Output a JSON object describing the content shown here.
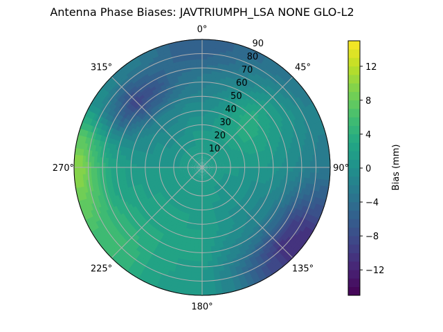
{
  "chart_data": {
    "type": "heatmap",
    "projection": "polar",
    "title": "Antenna Phase Biases: JAVTRIUMPH_LSA  NONE GLO-L2",
    "theta_direction": "clockwise",
    "theta_zero": "north",
    "theta_tick_labels": [
      "0°",
      "45°",
      "90°",
      "135°",
      "180°",
      "225°",
      "270°",
      "315°"
    ],
    "r_range": [
      0,
      90
    ],
    "r_tick_labels": [
      "10",
      "20",
      "30",
      "40",
      "50",
      "60",
      "70",
      "80",
      "90"
    ],
    "r_ticks": [
      10,
      20,
      30,
      40,
      50,
      60,
      70,
      80,
      90
    ],
    "grid": true,
    "colormap": "viridis",
    "colorbar": {
      "label": "Bias (mm)",
      "range": [
        -15,
        15
      ],
      "ticks": [
        12,
        8,
        4,
        0,
        -4,
        -8,
        -12
      ],
      "tick_labels": [
        "12",
        "8",
        "4",
        "0",
        "−4",
        "−8",
        "−12"
      ],
      "levels": 30
    },
    "azimuth_deg": [
      0,
      15,
      30,
      45,
      60,
      75,
      90,
      105,
      120,
      135,
      150,
      165,
      180,
      195,
      210,
      225,
      240,
      255,
      270,
      285,
      300,
      315,
      330,
      345
    ],
    "zenith_deg": [
      5,
      15,
      25,
      35,
      45,
      55,
      65,
      75,
      85
    ],
    "values_mm": [
      [
        1,
        1,
        1,
        0,
        -1,
        -2,
        -3,
        -5,
        -6
      ],
      [
        1,
        1,
        1,
        1,
        0,
        -1,
        -2,
        -4,
        -5
      ],
      [
        1,
        1,
        2,
        2,
        2,
        1,
        -1,
        -2,
        -4
      ],
      [
        1,
        1,
        2,
        3,
        4,
        3,
        1,
        -1,
        -3
      ],
      [
        1,
        1,
        2,
        3,
        3,
        2,
        1,
        0,
        -2
      ],
      [
        1,
        1,
        1,
        2,
        2,
        1,
        0,
        -1,
        -2
      ],
      [
        1,
        1,
        1,
        1,
        1,
        0,
        -1,
        -2,
        -3
      ],
      [
        1,
        1,
        1,
        0,
        0,
        -1,
        -3,
        -5,
        -6
      ],
      [
        1,
        1,
        0,
        0,
        -1,
        -2,
        -5,
        -9,
        -10
      ],
      [
        1,
        1,
        0,
        0,
        -1,
        -2,
        -5,
        -10,
        -11
      ],
      [
        1,
        1,
        1,
        0,
        0,
        -1,
        -3,
        -6,
        -7
      ],
      [
        1,
        1,
        1,
        1,
        1,
        0,
        -1,
        -2,
        -2
      ],
      [
        1,
        1,
        1,
        1,
        2,
        2,
        2,
        1,
        1
      ],
      [
        1,
        1,
        1,
        2,
        2,
        2,
        2,
        2,
        1
      ],
      [
        1,
        1,
        1,
        2,
        2,
        3,
        3,
        3,
        3
      ],
      [
        1,
        1,
        1,
        2,
        2,
        3,
        4,
        5,
        5
      ],
      [
        1,
        1,
        1,
        2,
        2,
        3,
        4,
        5,
        6
      ],
      [
        1,
        1,
        1,
        1,
        2,
        2,
        3,
        6,
        8
      ],
      [
        1,
        1,
        1,
        1,
        1,
        2,
        3,
        6,
        10
      ],
      [
        1,
        1,
        0,
        0,
        0,
        0,
        1,
        4,
        7
      ],
      [
        1,
        1,
        0,
        0,
        -1,
        -3,
        -5,
        -3,
        0
      ],
      [
        1,
        1,
        0,
        -1,
        -2,
        -6,
        -9,
        -6,
        -2
      ],
      [
        1,
        1,
        0,
        -1,
        -2,
        -5,
        -7,
        -5,
        -3
      ],
      [
        1,
        1,
        1,
        0,
        -1,
        -3,
        -4,
        -5,
        -5
      ]
    ]
  }
}
